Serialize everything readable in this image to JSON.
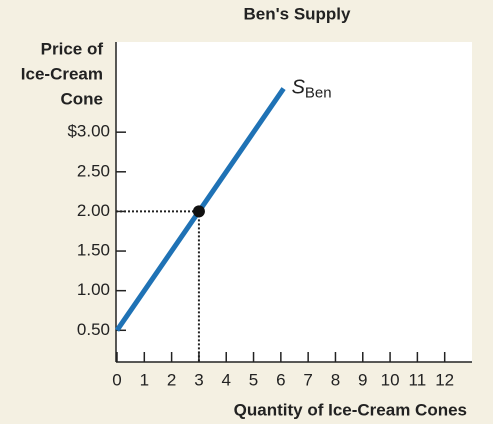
{
  "chart_data": {
    "type": "line",
    "title": "Ben's Supply",
    "y_label": [
      "Price of",
      "Ice-Cream",
      "Cone"
    ],
    "x_label": "Quantity of Ice-Cream Cones",
    "x": [
      0,
      3,
      6.1
    ],
    "series": [
      {
        "name": "S",
        "name_subscript": "Ben",
        "color": "#1f72b5",
        "values": [
          0.5,
          2,
          3.55
        ]
      }
    ],
    "highlight": {
      "x": 3,
      "y": 2
    },
    "xlim": [
      0,
      13
    ],
    "xticks": [
      0,
      1,
      2,
      3,
      4,
      5,
      6,
      7,
      8,
      9,
      10,
      11,
      12
    ],
    "ylim": [
      0.1,
      4.1
    ],
    "yticks": [
      {
        "value": 0.5,
        "label": "0.50"
      },
      {
        "value": 1,
        "label": "1.00"
      },
      {
        "value": 1.5,
        "label": "1.50"
      },
      {
        "value": 2,
        "label": "2.00"
      },
      {
        "value": 2.5,
        "label": "2.50"
      },
      {
        "value": 3,
        "label": "$3.00"
      }
    ]
  }
}
